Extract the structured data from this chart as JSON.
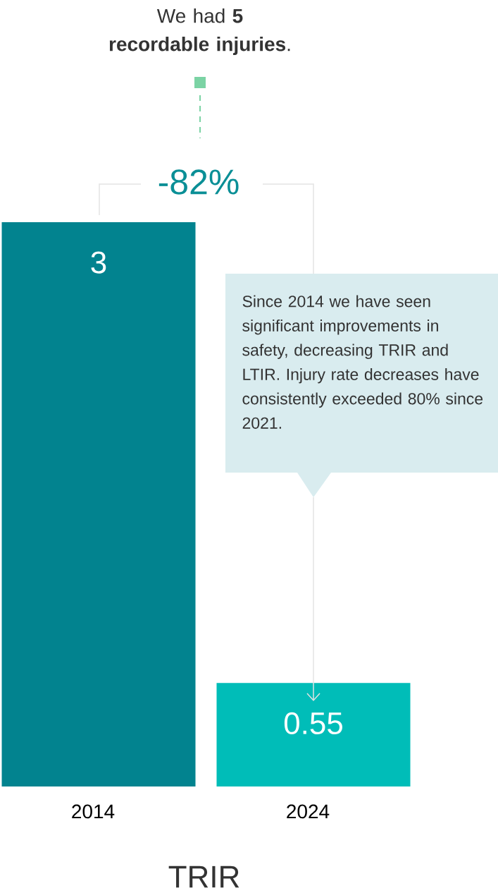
{
  "chart_data": {
    "type": "bar",
    "title": "We had **5 recordable injuries**.",
    "categories": [
      "2014",
      "2024"
    ],
    "values": [
      3,
      0.55
    ],
    "colors": [
      "#02838f",
      "#00bdb8"
    ],
    "data_labels": true,
    "xlabel": "TRIR",
    "annotations": [
      "-82%",
      "Since 2014 we have seen significant improvements in safety, decreasing TRIR and LTIR. Injury rate decreases have consistently exceeded 80% since 2021."
    ]
  }
}
